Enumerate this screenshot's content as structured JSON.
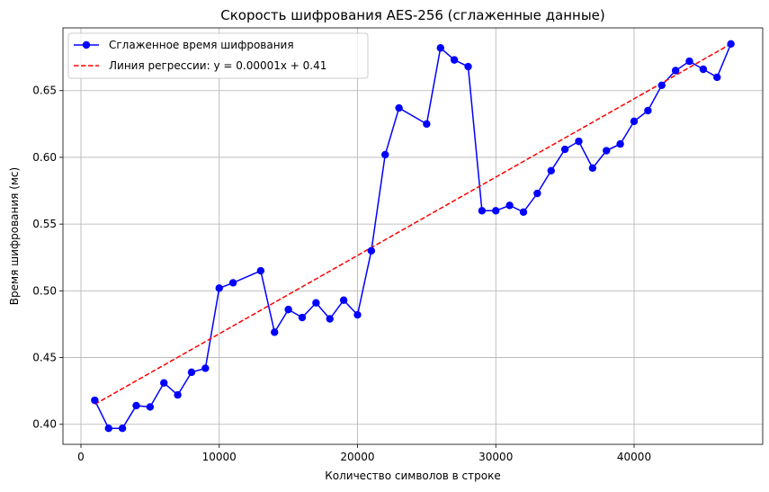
{
  "chart_data": {
    "type": "line",
    "title": "Скорость шифрования AES-256 (сглаженные данные)",
    "xlabel": "Количество символов в строке",
    "ylabel": "Время шифрования (мс)",
    "xlim": [
      -1300,
      49300
    ],
    "ylim": [
      0.385,
      0.697
    ],
    "xticks": [
      0,
      10000,
      20000,
      30000,
      40000
    ],
    "xtick_labels": [
      "0",
      "10000",
      "20000",
      "30000",
      "40000"
    ],
    "yticks": [
      0.4,
      0.45,
      0.5,
      0.55,
      0.6,
      0.65
    ],
    "ytick_labels": [
      "0.40",
      "0.45",
      "0.50",
      "0.55",
      "0.60",
      "0.65"
    ],
    "grid": true,
    "legend_position": "top-left",
    "series": [
      {
        "name": "Сглаженное время шифрования",
        "color": "#0000ff",
        "style": "solid-with-markers",
        "x": [
          1000,
          2000,
          3000,
          4000,
          5000,
          6000,
          7000,
          8000,
          9000,
          10000,
          11000,
          13000,
          14000,
          15000,
          16000,
          17000,
          18000,
          19000,
          20000,
          21000,
          22000,
          23000,
          25000,
          26000,
          27000,
          28000,
          29000,
          30000,
          31000,
          32000,
          33000,
          34000,
          35000,
          36000,
          37000,
          38000,
          39000,
          40000,
          41000,
          42000,
          43000,
          44000,
          45000,
          46000,
          47000
        ],
        "y": [
          0.418,
          0.397,
          0.397,
          0.414,
          0.413,
          0.431,
          0.422,
          0.439,
          0.442,
          0.502,
          0.506,
          0.515,
          0.469,
          0.486,
          0.48,
          0.491,
          0.479,
          0.493,
          0.482,
          0.53,
          0.602,
          0.637,
          0.625,
          0.682,
          0.673,
          0.668,
          0.56,
          0.56,
          0.564,
          0.559,
          0.573,
          0.59,
          0.606,
          0.612,
          0.592,
          0.605,
          0.61,
          0.627,
          0.635,
          0.654,
          0.665,
          0.672,
          0.666,
          0.66,
          0.685
        ]
      },
      {
        "name": "Линия регрессии: y = 0.00001x + 0.41",
        "color": "#ff0000",
        "style": "dashed",
        "x": [
          1000,
          47000
        ],
        "y": [
          0.415,
          0.685
        ]
      }
    ]
  }
}
